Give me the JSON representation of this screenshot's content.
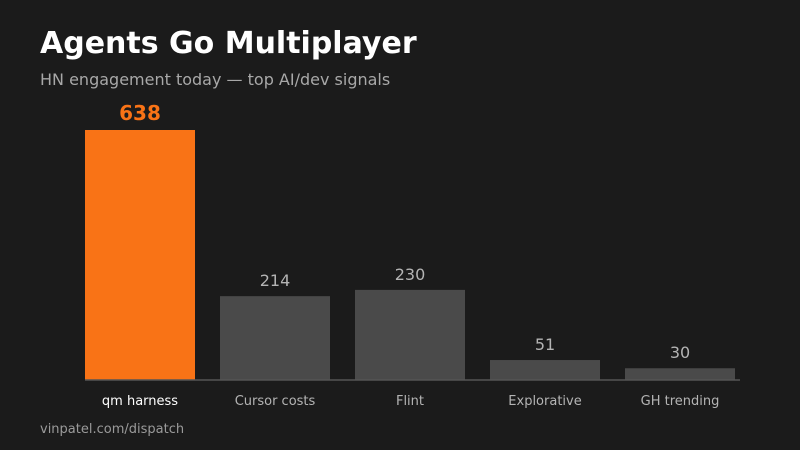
{
  "header": {
    "title": "Agents Go Multiplayer",
    "subtitle": "HN engagement today — top AI/dev signals"
  },
  "footer": {
    "source": "vinpatel.com/dispatch"
  },
  "colors": {
    "background": "#1b1b1b",
    "highlight_bar": "#f97316",
    "default_bar": "#4a4a4a",
    "highlight_label": "#ffffff",
    "default_label": "#b4b4b4",
    "value_default": "#b4b4b4",
    "value_highlight": "#f97316",
    "axis": "#555555"
  },
  "chart_data": {
    "type": "bar",
    "title": "Agents Go Multiplayer",
    "subtitle": "HN engagement today — top AI/dev signals",
    "categories": [
      "qm harness",
      "Cursor costs",
      "Flint",
      "Explorative",
      "GH trending"
    ],
    "values": [
      638,
      214,
      230,
      51,
      30
    ],
    "highlight_index": 0,
    "ylim": [
      0,
      638
    ],
    "grid": false,
    "legend": "none"
  }
}
